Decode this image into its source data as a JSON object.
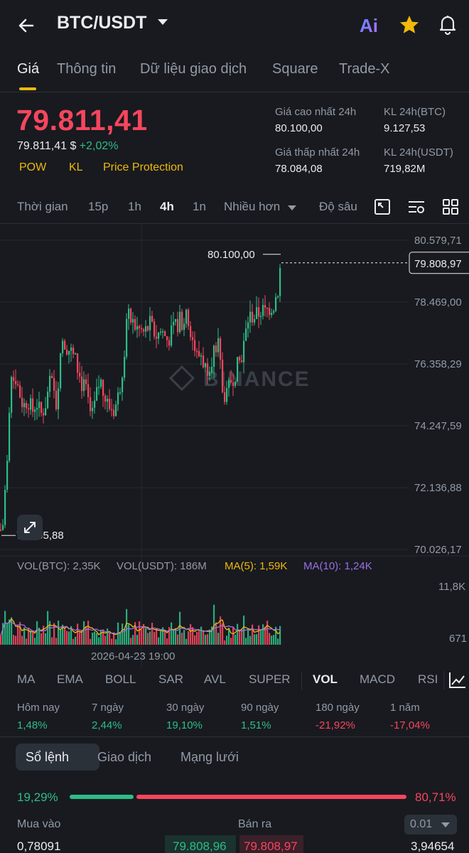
{
  "header": {
    "pair": "BTC/USDT",
    "ai_label": "Ai"
  },
  "tabs": [
    {
      "label": "Giá",
      "active": true
    },
    {
      "label": "Thông tin"
    },
    {
      "label": "Dữ liệu giao dịch"
    },
    {
      "label": "Square"
    },
    {
      "label": "Trade-X"
    }
  ],
  "ticker": {
    "last_price": "79.811,41",
    "price_usd": "79.811,41 $",
    "change": "+2,02%",
    "tags": [
      "POW",
      "KL",
      "Price Protection"
    ],
    "high_label": "Giá cao nhất 24h",
    "high_value": "80.100,00",
    "low_label": "Giá thấp nhất 24h",
    "low_value": "78.084,08",
    "vol_btc_label": "KL 24h(BTC)",
    "vol_btc_value": "9.127,53",
    "vol_usdt_label": "KL 24h(USDT)",
    "vol_usdt_value": "719,82M"
  },
  "intervals": {
    "items": [
      {
        "label": "Thời gian"
      },
      {
        "label": "15p"
      },
      {
        "label": "1h"
      },
      {
        "label": "4h",
        "active": true
      },
      {
        "label": "1n"
      },
      {
        "label": "Nhiều hơn"
      },
      {
        "label": "Độ sâu"
      }
    ]
  },
  "chart_data": {
    "type": "candlestick",
    "price_ticks": [
      "80.579,71",
      "78.469,00",
      "76.358,29",
      "74.247,59",
      "72.136,88",
      "70.026,17"
    ],
    "y_range": [
      70026.17,
      80579.71
    ],
    "high_marker": "80.100,00",
    "low_marker": "70.505,88",
    "current_price": "79.808,97",
    "watermark": "BINANCE",
    "x_label": "2026-04-23 19:00",
    "volume_legend": {
      "vol_btc": "VOL(BTC): 2,35K",
      "vol_usdt": "VOL(USDT): 186M",
      "ma5": "MA(5): 1,59K",
      "ma10": "MA(10): 1,24K"
    },
    "volume_ticks": [
      "11,8K",
      "671"
    ],
    "colors": {
      "up": "#2ebd85",
      "down": "#f6465d",
      "ma5": "#f0b90b",
      "ma10": "#9b6fe0"
    }
  },
  "indicators": [
    {
      "label": "MA"
    },
    {
      "label": "EMA"
    },
    {
      "label": "BOLL"
    },
    {
      "label": "SAR"
    },
    {
      "label": "AVL"
    },
    {
      "label": "SUPER"
    },
    {
      "label": "VOL",
      "active": true
    },
    {
      "label": "MACD"
    },
    {
      "label": "RSI"
    }
  ],
  "performance": [
    {
      "label": "Hôm nay",
      "value": "1,48%",
      "up": true
    },
    {
      "label": "7 ngày",
      "value": "2,44%",
      "up": true
    },
    {
      "label": "30 ngày",
      "value": "19,10%",
      "up": true
    },
    {
      "label": "90 ngày",
      "value": "1,51%",
      "up": true
    },
    {
      "label": "180 ngày",
      "value": "-21,92%",
      "up": false
    },
    {
      "label": "1 năm",
      "value": "-17,04%",
      "up": false
    }
  ],
  "orderbook": {
    "tabs": [
      {
        "label": "Sổ lệnh",
        "active": true
      },
      {
        "label": "Giao dịch"
      },
      {
        "label": "Mạng lưới"
      }
    ],
    "buy_ratio": "19,29%",
    "sell_ratio": "80,71%",
    "buy_label": "Mua vào",
    "sell_label": "Bán ra",
    "step": "0.01",
    "row": {
      "bid_qty": "0,78091",
      "bid_price": "79.808,96",
      "ask_price": "79.808,97",
      "ask_qty": "3,94654"
    }
  }
}
